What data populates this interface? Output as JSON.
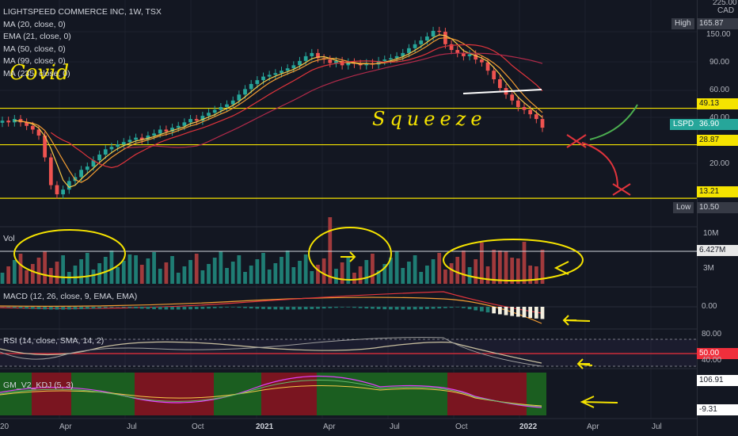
{
  "chart_header": {
    "symbol_line": "LIGHTSPEED COMMERCE INC, 1W, TSX",
    "studies": [
      "MA (20, close, 0)",
      "EMA (21, close, 0)",
      "MA (50, close, 0)",
      "MA (99, close, 0)",
      "MA (235, close, 0)"
    ],
    "currency": "CAD"
  },
  "price_axis": {
    "ticks": [
      "225.00",
      "150.00",
      "90.00",
      "60.00",
      "40.00",
      "20.00"
    ],
    "labels": {
      "high_name": "High",
      "high_value": "165.87",
      "low_name": "Low",
      "low_value": "10.50",
      "symbol": "LSPD",
      "last": "36.90"
    },
    "level_lines": [
      "49.13",
      "28.87",
      "13.21"
    ]
  },
  "volume": {
    "title": "Vol",
    "ticks": [
      "10M",
      "3M"
    ],
    "value_tag": "6.427M"
  },
  "macd": {
    "title": "MACD (12, 26, close, 9, EMA, EMA)",
    "ticks": [
      "0.00"
    ]
  },
  "rsi": {
    "title": "RSI (14, close, SMA, 14, 2)",
    "ticks": [
      "80.00",
      "40.00"
    ],
    "value_tag": "50.00"
  },
  "kdj": {
    "title": "GM_V2_KDJ (5, 3)",
    "upper": "106.91",
    "lower": "-9.31"
  },
  "time_axis": {
    "labels": [
      "20",
      "Apr",
      "Jul",
      "Oct",
      "2021",
      "Apr",
      "Jul",
      "Oct",
      "2022",
      "Apr",
      "Jul"
    ]
  },
  "annotations": {
    "covid": "Covid",
    "squeeze": "Squeeze"
  },
  "colors": {
    "bg": "#131722",
    "up": "#26a69a",
    "down": "#ef5350",
    "level": "#f5e300",
    "ma_orange": "#f39c32",
    "ma_red": "#e0343c",
    "rsi_band": "#7e57c2"
  },
  "chart_data": {
    "type": "candlestick",
    "symbol": "LSPD",
    "interval": "1W",
    "y_scale": "log",
    "ylim": [
      10.5,
      225
    ],
    "high": 165.87,
    "low": 10.5,
    "last": 36.9,
    "horizontal_levels": [
      49.13,
      28.87,
      13.21
    ],
    "closes": [
      41,
      40,
      42,
      40,
      38,
      36,
      33,
      24,
      16,
      14,
      15,
      17,
      18,
      20,
      21,
      23,
      25,
      27,
      28,
      29,
      30,
      31,
      32,
      31,
      33,
      34,
      36,
      35,
      37,
      38,
      40,
      42,
      41,
      44,
      46,
      48,
      50,
      52,
      55,
      60,
      65,
      70,
      74,
      78,
      80,
      82,
      85,
      88,
      92,
      98,
      105,
      110,
      102,
      100,
      95,
      98,
      92,
      96,
      94,
      92,
      95,
      93,
      98,
      100,
      102,
      105,
      110,
      118,
      125,
      132,
      140,
      152,
      150,
      125,
      115,
      110,
      105,
      108,
      100,
      96,
      85,
      75,
      66,
      60,
      55,
      50,
      48,
      45,
      42,
      37
    ],
    "volume_ticks": [
      "10M",
      "3M"
    ],
    "volume_last": "6.427M"
  }
}
